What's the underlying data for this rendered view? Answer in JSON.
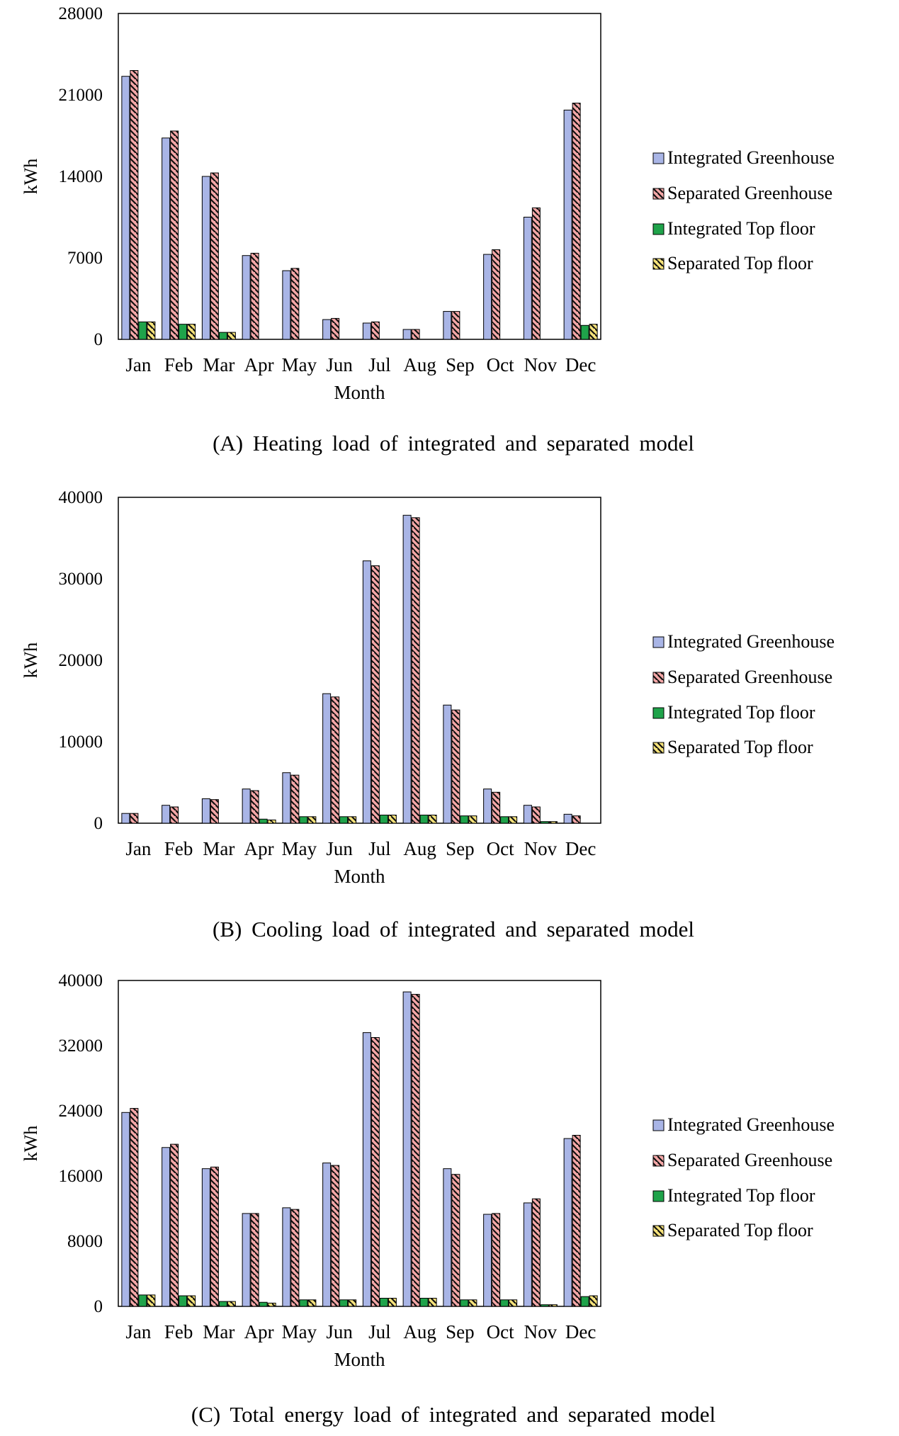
{
  "legend": [
    {
      "name": "Integrated Greenhouse",
      "color": "#a9b5e6",
      "pattern": "solid"
    },
    {
      "name": "Separated Greenhouse",
      "color": "#f4a7a7",
      "pattern": "hatch"
    },
    {
      "name": "Integrated Top floor",
      "color": "#1fa34a",
      "pattern": "solid"
    },
    {
      "name": "Separated Top floor",
      "color": "#f5e27a",
      "pattern": "hatch"
    }
  ],
  "chart_data": [
    {
      "type": "bar",
      "caption": "(A) Heating load of integrated and separated model",
      "xlabel": "Month",
      "ylabel": "kWh",
      "ylim": [
        0,
        28000
      ],
      "yticks": [
        "0",
        "7000",
        "14000",
        "21000",
        "28000"
      ],
      "categories": [
        "Jan",
        "Feb",
        "Mar",
        "Apr",
        "May",
        "Jun",
        "Jul",
        "Aug",
        "Sep",
        "Oct",
        "Nov",
        "Dec"
      ],
      "series": [
        {
          "name": "Integrated Greenhouse",
          "values": [
            22600,
            17300,
            14000,
            7200,
            5900,
            1700,
            1400,
            850,
            2400,
            7300,
            10500,
            19700
          ]
        },
        {
          "name": "Separated Greenhouse",
          "values": [
            23100,
            17900,
            14300,
            7400,
            6100,
            1800,
            1500,
            850,
            2400,
            7700,
            11300,
            20300
          ]
        },
        {
          "name": "Integrated Top floor",
          "values": [
            1500,
            1300,
            600,
            0,
            0,
            0,
            0,
            0,
            0,
            0,
            0,
            1200
          ]
        },
        {
          "name": "Separated Top floor",
          "values": [
            1500,
            1300,
            600,
            0,
            0,
            0,
            0,
            0,
            0,
            0,
            0,
            1300
          ]
        }
      ],
      "grid": false,
      "legend_position": "right"
    },
    {
      "type": "bar",
      "caption": "(B) Cooling load of integrated and separated model",
      "xlabel": "Month",
      "ylabel": "kWh",
      "ylim": [
        0,
        40000
      ],
      "yticks": [
        "0",
        "10000",
        "20000",
        "30000",
        "40000"
      ],
      "categories": [
        "Jan",
        "Feb",
        "Mar",
        "Apr",
        "May",
        "Jun",
        "Jul",
        "Aug",
        "Sep",
        "Oct",
        "Nov",
        "Dec"
      ],
      "series": [
        {
          "name": "Integrated Greenhouse",
          "values": [
            1200,
            2200,
            3000,
            4200,
            6200,
            15900,
            32200,
            37800,
            14500,
            4200,
            2200,
            1100
          ]
        },
        {
          "name": "Separated Greenhouse",
          "values": [
            1200,
            2000,
            2900,
            4000,
            5900,
            15500,
            31600,
            37500,
            13900,
            3800,
            2000,
            900
          ]
        },
        {
          "name": "Integrated Top floor",
          "values": [
            0,
            0,
            0,
            500,
            800,
            800,
            1000,
            1000,
            900,
            800,
            200,
            0
          ]
        },
        {
          "name": "Separated Top floor",
          "values": [
            0,
            0,
            0,
            400,
            800,
            800,
            1000,
            1000,
            900,
            800,
            200,
            0
          ]
        }
      ],
      "grid": false,
      "legend_position": "right"
    },
    {
      "type": "bar",
      "caption": "(C) Total energy load of integrated and separated model",
      "xlabel": "Month",
      "ylabel": "kWh",
      "ylim": [
        0,
        40000
      ],
      "yticks": [
        "0",
        "8000",
        "16000",
        "24000",
        "32000",
        "40000"
      ],
      "categories": [
        "Jan",
        "Feb",
        "Mar",
        "Apr",
        "May",
        "Jun",
        "Jul",
        "Aug",
        "Sep",
        "Oct",
        "Nov",
        "Dec"
      ],
      "series": [
        {
          "name": "Integrated Greenhouse",
          "values": [
            23800,
            19500,
            16900,
            11400,
            12100,
            17600,
            33600,
            38600,
            16900,
            11300,
            12700,
            20600
          ]
        },
        {
          "name": "Separated Greenhouse",
          "values": [
            24300,
            19900,
            17100,
            11400,
            11900,
            17300,
            33000,
            38300,
            16200,
            11400,
            13200,
            21000
          ]
        },
        {
          "name": "Integrated Top floor",
          "values": [
            1400,
            1300,
            600,
            500,
            800,
            800,
            1000,
            1000,
            800,
            800,
            200,
            1200
          ]
        },
        {
          "name": "Separated Top floor",
          "values": [
            1400,
            1300,
            600,
            400,
            800,
            800,
            1000,
            1000,
            800,
            800,
            200,
            1300
          ]
        }
      ],
      "grid": false,
      "legend_position": "right"
    }
  ]
}
